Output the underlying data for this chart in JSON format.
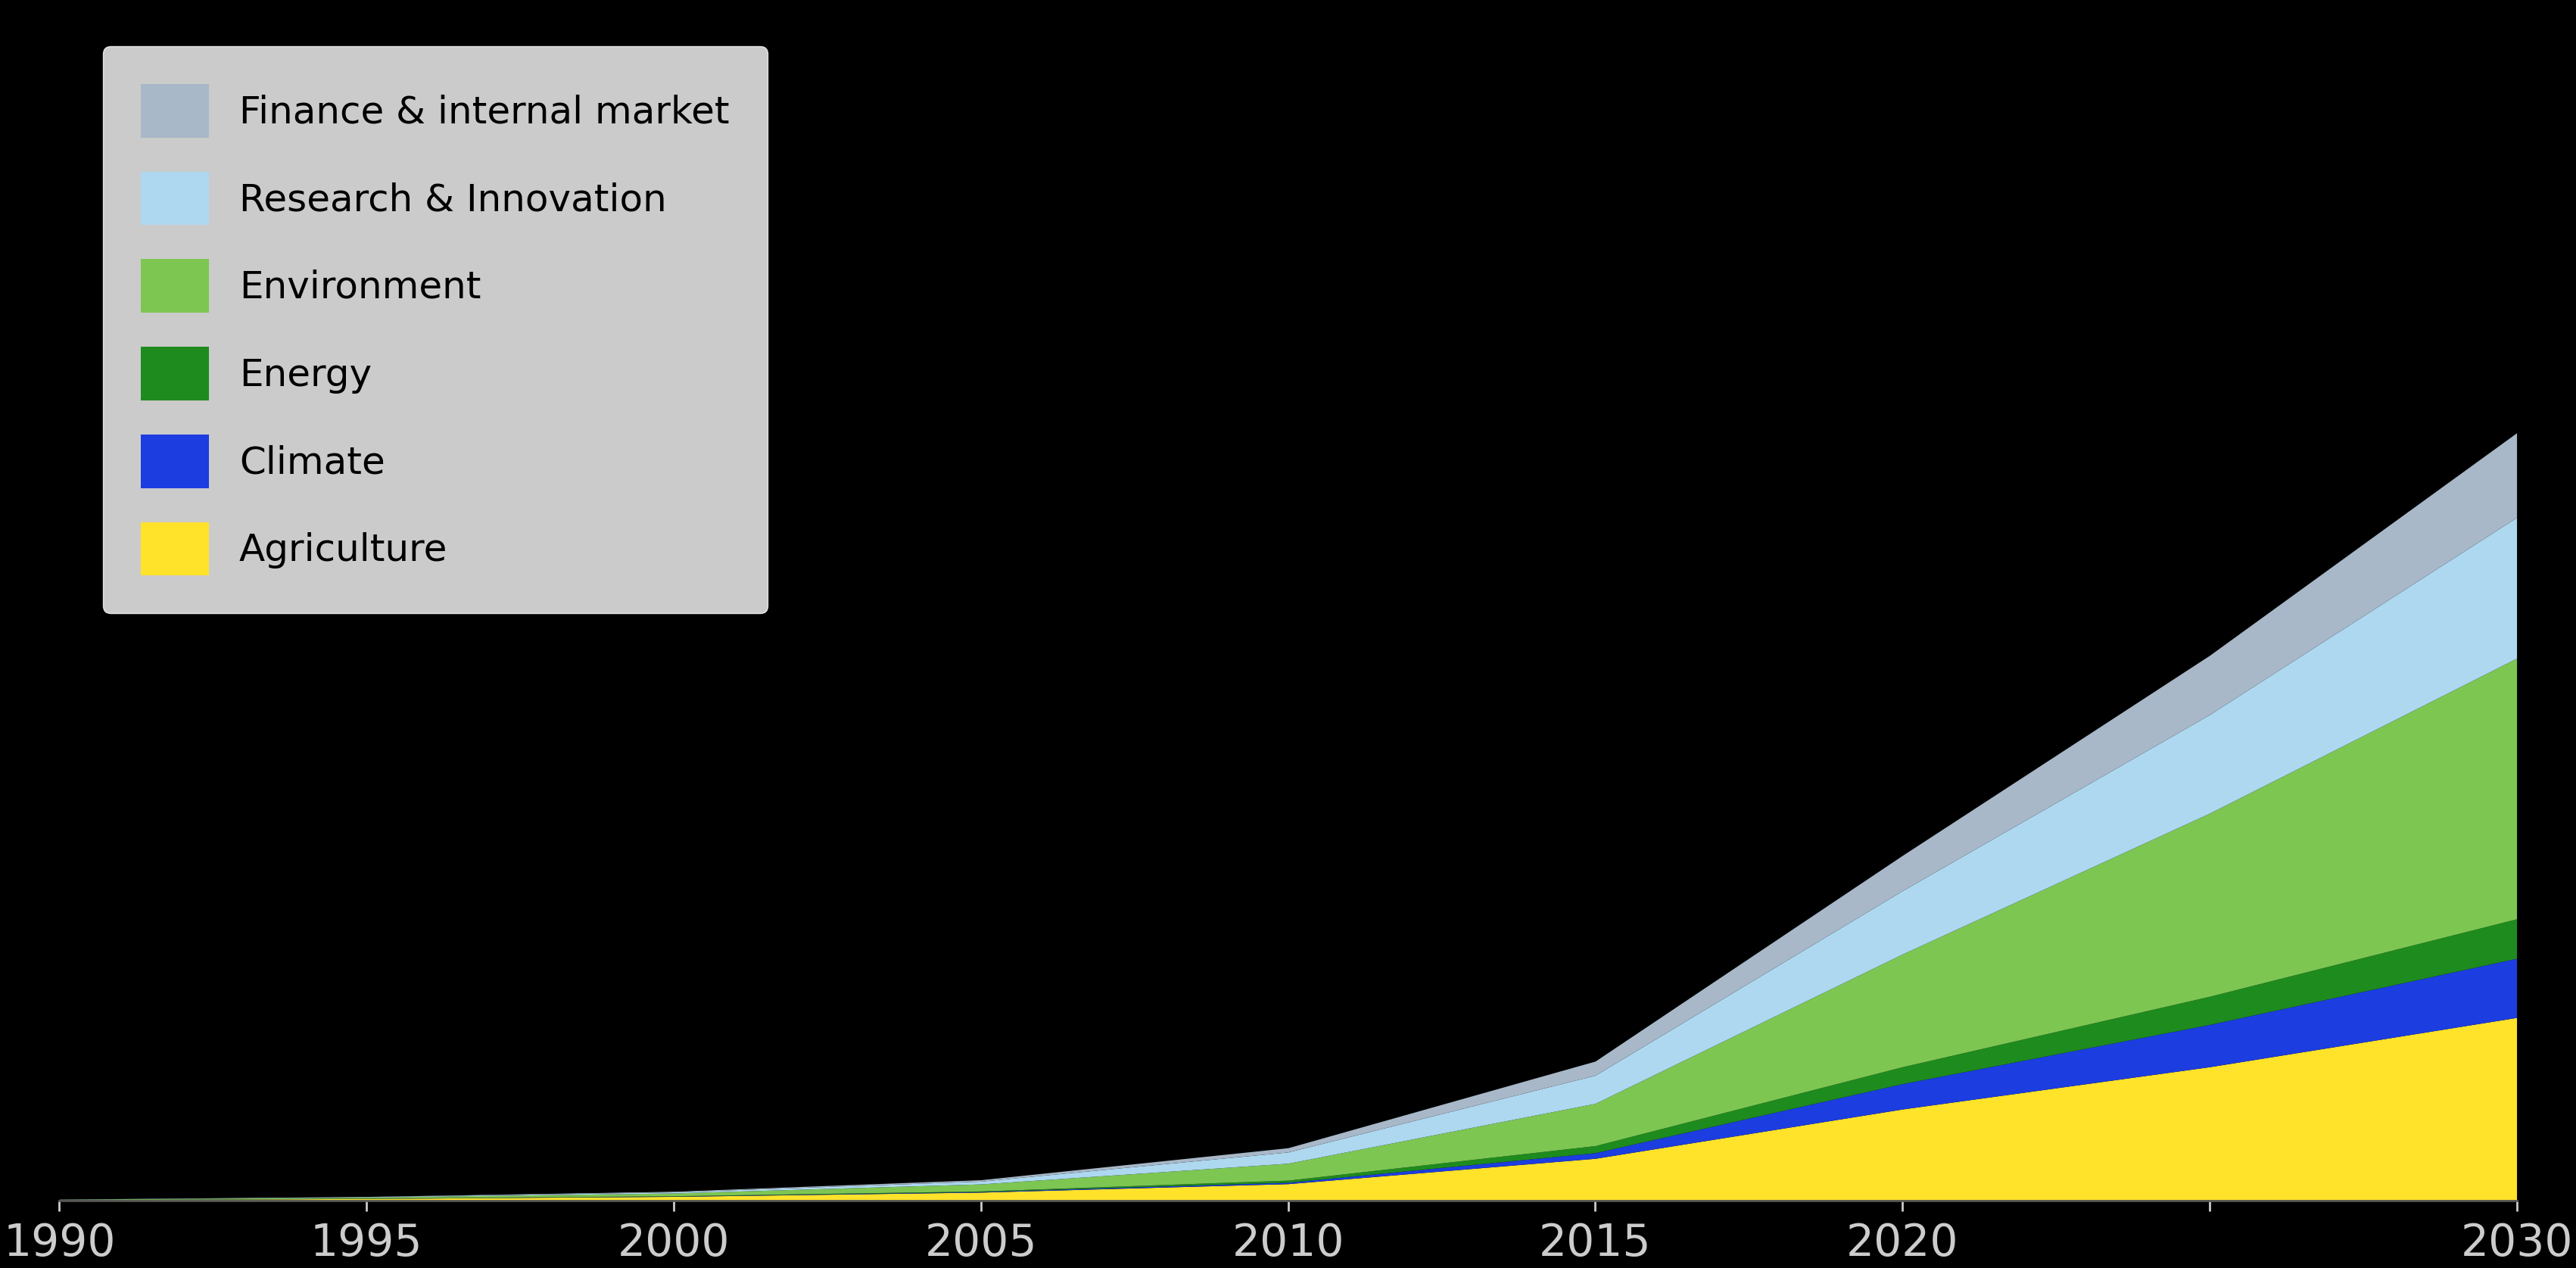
{
  "years": [
    1990,
    1995,
    2000,
    2005,
    2010,
    2015,
    2020,
    2025,
    2030
  ],
  "series": {
    "Agriculture": [
      0.5,
      1.5,
      3.0,
      6.0,
      12.0,
      30.0,
      65.0,
      95.0,
      130.0
    ],
    "Climate": [
      0.05,
      0.1,
      0.2,
      0.4,
      1.0,
      4.0,
      18.0,
      30.0,
      42.0
    ],
    "Energy": [
      0.05,
      0.1,
      0.2,
      0.4,
      1.5,
      5.0,
      12.0,
      20.0,
      28.0
    ],
    "Environment": [
      0.3,
      0.8,
      2.0,
      5.0,
      12.0,
      30.0,
      80.0,
      130.0,
      185.0
    ],
    "Research & Innovation": [
      0.1,
      0.3,
      0.8,
      2.0,
      8.0,
      20.0,
      45.0,
      70.0,
      100.0
    ],
    "Finance & internal market": [
      0.05,
      0.15,
      0.4,
      1.0,
      3.0,
      10.0,
      25.0,
      42.0,
      60.0
    ]
  },
  "colors": {
    "Agriculture": "#FFE22A",
    "Climate": "#1C3DE0",
    "Energy": "#1E8B1E",
    "Environment": "#7DC652",
    "Research & Innovation": "#ADD8F0",
    "Finance & internal market": "#A8B8C8"
  },
  "legend_order": [
    "Finance & internal market",
    "Research & Innovation",
    "Environment",
    "Energy",
    "Climate",
    "Agriculture"
  ],
  "background_color": "#000000",
  "plot_bg_color": "#000000",
  "text_color": "#ffffff",
  "tick_label_color": "#cccccc",
  "xlim": [
    1990,
    2030
  ],
  "ylim_max": 850,
  "xlabel_ticks": [
    1990,
    1995,
    2000,
    2005,
    2010,
    2015,
    2020,
    2025,
    2030
  ],
  "xlabel_labels": [
    "1990",
    "1995",
    "2000",
    "2005",
    "2010",
    "2015",
    "2020",
    "",
    "2030"
  ]
}
